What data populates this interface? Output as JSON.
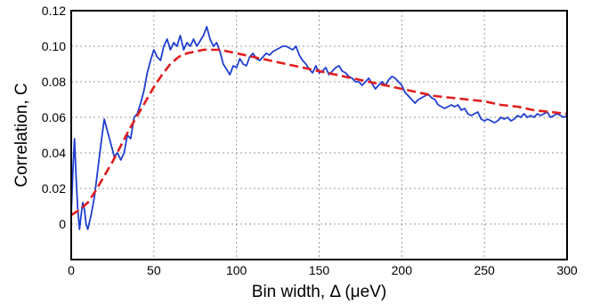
{
  "chart_data": {
    "type": "line",
    "xlabel": "Bin width, Δ (μeV)",
    "ylabel": "Correlation, C",
    "xlim": [
      0,
      300
    ],
    "ylim": [
      -0.02,
      0.12
    ],
    "xticks": [
      0,
      50,
      100,
      150,
      200,
      250,
      300
    ],
    "yticks": [
      0,
      0.02,
      0.04,
      0.06,
      0.08,
      0.1,
      0.12
    ],
    "ytick_labels": [
      "0",
      "0.02",
      "0.04",
      "0.06",
      "0.08",
      "0.10",
      "0.12"
    ],
    "grid": true,
    "series": [
      {
        "color": "#1f3fd0",
        "style": "solid",
        "x": [
          0,
          1,
          2,
          3,
          4,
          5,
          6,
          7,
          8,
          9,
          10,
          12,
          14,
          16,
          18,
          20,
          22,
          24,
          26,
          28,
          30,
          32,
          34,
          36,
          38,
          40,
          42,
          44,
          46,
          48,
          50,
          52,
          54,
          56,
          58,
          60,
          62,
          64,
          66,
          68,
          70,
          72,
          74,
          76,
          78,
          80,
          82,
          84,
          86,
          88,
          90,
          92,
          94,
          96,
          98,
          100,
          102,
          104,
          106,
          108,
          110,
          112,
          114,
          116,
          118,
          120,
          122,
          124,
          126,
          128,
          130,
          132,
          134,
          136,
          138,
          140,
          142,
          144,
          146,
          148,
          150,
          152,
          154,
          156,
          158,
          160,
          162,
          164,
          166,
          168,
          170,
          172,
          174,
          176,
          178,
          180,
          182,
          184,
          186,
          188,
          190,
          192,
          194,
          196,
          198,
          200,
          202,
          204,
          206,
          208,
          210,
          212,
          214,
          216,
          218,
          220,
          222,
          224,
          226,
          228,
          230,
          232,
          234,
          236,
          238,
          240,
          242,
          244,
          246,
          248,
          250,
          252,
          254,
          256,
          258,
          260,
          262,
          264,
          266,
          268,
          270,
          272,
          274,
          276,
          278,
          280,
          282,
          284,
          286,
          288,
          290,
          292,
          294,
          296,
          298,
          300
        ],
        "values": [
          0.005,
          0.03,
          0.048,
          0.025,
          0.008,
          -0.003,
          0.005,
          0.012,
          0.008,
          0.0,
          -0.003,
          0.005,
          0.015,
          0.03,
          0.045,
          0.059,
          0.052,
          0.045,
          0.038,
          0.04,
          0.036,
          0.04,
          0.05,
          0.048,
          0.06,
          0.062,
          0.068,
          0.075,
          0.085,
          0.092,
          0.098,
          0.094,
          0.092,
          0.1,
          0.104,
          0.098,
          0.102,
          0.1,
          0.106,
          0.098,
          0.102,
          0.1,
          0.104,
          0.1,
          0.103,
          0.106,
          0.111,
          0.104,
          0.1,
          0.102,
          0.097,
          0.09,
          0.087,
          0.084,
          0.089,
          0.088,
          0.093,
          0.09,
          0.089,
          0.094,
          0.096,
          0.093,
          0.092,
          0.094,
          0.096,
          0.095,
          0.097,
          0.098,
          0.099,
          0.1,
          0.1,
          0.099,
          0.098,
          0.1,
          0.095,
          0.092,
          0.09,
          0.087,
          0.085,
          0.089,
          0.085,
          0.086,
          0.088,
          0.084,
          0.086,
          0.088,
          0.089,
          0.086,
          0.085,
          0.083,
          0.082,
          0.08,
          0.08,
          0.078,
          0.08,
          0.082,
          0.079,
          0.076,
          0.078,
          0.08,
          0.078,
          0.081,
          0.083,
          0.082,
          0.08,
          0.078,
          0.074,
          0.072,
          0.07,
          0.068,
          0.07,
          0.071,
          0.072,
          0.073,
          0.071,
          0.07,
          0.067,
          0.066,
          0.065,
          0.066,
          0.067,
          0.066,
          0.067,
          0.064,
          0.065,
          0.062,
          0.061,
          0.062,
          0.063,
          0.059,
          0.058,
          0.059,
          0.058,
          0.057,
          0.058,
          0.06,
          0.059,
          0.06,
          0.058,
          0.059,
          0.061,
          0.06,
          0.062,
          0.06,
          0.061,
          0.06,
          0.062,
          0.061,
          0.062,
          0.063,
          0.06,
          0.061,
          0.062,
          0.061,
          0.06,
          0.061
        ]
      },
      {
        "color": "#e11d1d",
        "style": "dashed",
        "x": [
          0,
          5,
          10,
          15,
          20,
          25,
          30,
          35,
          40,
          45,
          50,
          55,
          60,
          65,
          70,
          75,
          80,
          85,
          90,
          95,
          100,
          110,
          120,
          130,
          140,
          150,
          160,
          170,
          180,
          190,
          200,
          210,
          220,
          230,
          240,
          250,
          260,
          270,
          280,
          290,
          300
        ],
        "values": [
          0.005,
          0.008,
          0.012,
          0.019,
          0.027,
          0.035,
          0.044,
          0.053,
          0.061,
          0.069,
          0.077,
          0.084,
          0.09,
          0.094,
          0.096,
          0.097,
          0.098,
          0.098,
          0.098,
          0.097,
          0.096,
          0.094,
          0.092,
          0.09,
          0.088,
          0.086,
          0.084,
          0.082,
          0.08,
          0.078,
          0.076,
          0.074,
          0.072,
          0.071,
          0.07,
          0.069,
          0.067,
          0.066,
          0.064,
          0.063,
          0.062
        ]
      }
    ]
  }
}
